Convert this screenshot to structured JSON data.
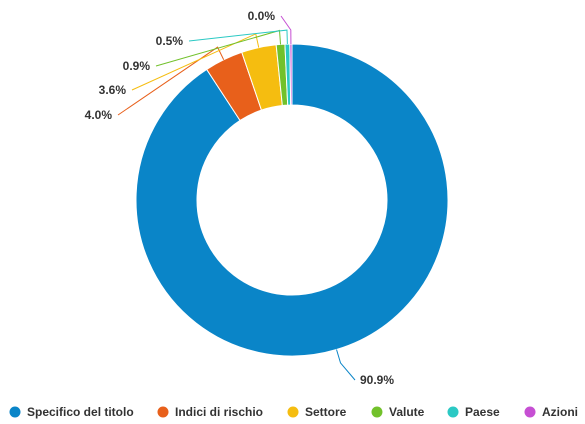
{
  "chart_data": {
    "type": "pie",
    "donut": true,
    "title": "",
    "categories": [
      "Specifico del titolo",
      "Indici di rischio",
      "Settore",
      "Valute",
      "Paese",
      "Azioni"
    ],
    "values": [
      90.9,
      4.0,
      3.6,
      0.9,
      0.5,
      0.0
    ],
    "value_labels": [
      "90.9%",
      "4.0%",
      "3.6%",
      "0.9%",
      "0.5%",
      "0.0%"
    ],
    "colors": [
      "#0a85c8",
      "#e8601b",
      "#f5bd10",
      "#72c12b",
      "#2bc9c4",
      "#c64fd3"
    ],
    "legend_position": "bottom"
  }
}
